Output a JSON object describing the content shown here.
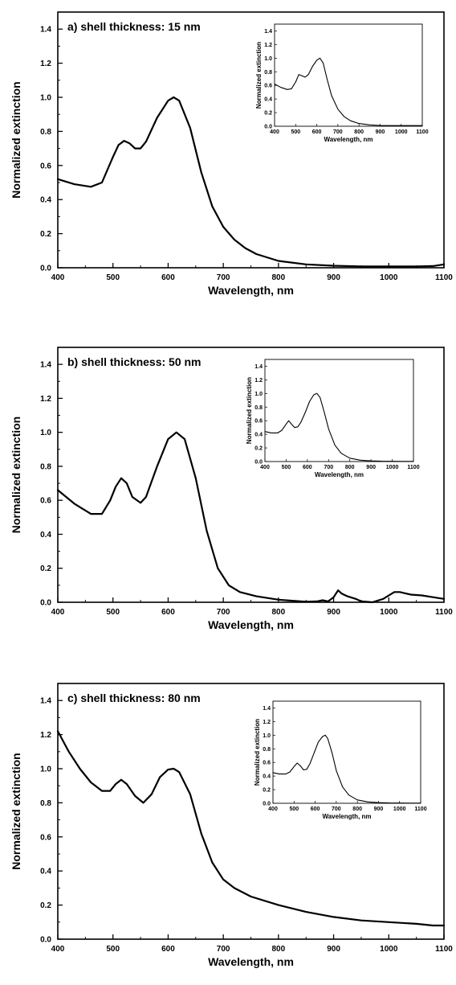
{
  "chart_data": [
    {
      "type": "line",
      "title": "a) shell thickness: 15 nm",
      "xlabel": "Wavelength, nm",
      "ylabel": "Normalized extinction",
      "xlim": [
        400,
        1100
      ],
      "ylim": [
        0,
        1.5
      ],
      "xticks": [
        400,
        500,
        600,
        700,
        800,
        900,
        1000,
        1100
      ],
      "yticks": [
        0.0,
        0.2,
        0.4,
        0.6,
        0.8,
        1.0,
        1.2,
        1.4
      ],
      "series": [
        {
          "x": [
            400,
            430,
            460,
            480,
            500,
            510,
            520,
            530,
            540,
            550,
            560,
            580,
            600,
            610,
            620,
            640,
            660,
            680,
            700,
            720,
            740,
            760,
            800,
            850,
            900,
            950,
            1000,
            1050,
            1080,
            1100
          ],
          "y": [
            0.52,
            0.49,
            0.475,
            0.5,
            0.65,
            0.72,
            0.745,
            0.73,
            0.7,
            0.7,
            0.74,
            0.88,
            0.98,
            1.0,
            0.98,
            0.82,
            0.56,
            0.36,
            0.24,
            0.165,
            0.115,
            0.08,
            0.04,
            0.02,
            0.012,
            0.008,
            0.008,
            0.008,
            0.01,
            0.02
          ]
        }
      ],
      "inset": {
        "type": "line",
        "xlabel": "Wavelength, nm",
        "ylabel": "Normalized extinction",
        "xlim": [
          400,
          1100
        ],
        "ylim": [
          0,
          1.5
        ],
        "xticks": [
          400,
          500,
          600,
          700,
          800,
          900,
          1000,
          1100
        ],
        "yticks": [
          0.0,
          0.2,
          0.4,
          0.6,
          0.8,
          1.0,
          1.2,
          1.4
        ],
        "series": [
          {
            "x": [
              400,
              430,
              460,
              480,
              500,
              515,
              530,
              545,
              560,
              580,
              600,
              615,
              630,
              650,
              670,
              700,
              730,
              760,
              800,
              850,
              900,
              950,
              1000,
              1050,
              1100
            ],
            "y": [
              0.62,
              0.57,
              0.54,
              0.55,
              0.65,
              0.76,
              0.74,
              0.72,
              0.76,
              0.88,
              0.97,
              1.0,
              0.93,
              0.68,
              0.45,
              0.25,
              0.14,
              0.08,
              0.04,
              0.02,
              0.012,
              0.01,
              0.01,
              0.01,
              0.01
            ]
          }
        ]
      }
    },
    {
      "type": "line",
      "title": "b) shell thickness: 50 nm",
      "xlabel": "Wavelength, nm",
      "ylabel": "Normalized extinction",
      "xlim": [
        400,
        1100
      ],
      "ylim": [
        0,
        1.5
      ],
      "xticks": [
        400,
        500,
        600,
        700,
        800,
        900,
        1000,
        1100
      ],
      "yticks": [
        0.0,
        0.2,
        0.4,
        0.6,
        0.8,
        1.0,
        1.2,
        1.4
      ],
      "series": [
        {
          "x": [
            400,
            430,
            460,
            480,
            495,
            505,
            515,
            525,
            535,
            550,
            560,
            580,
            600,
            615,
            630,
            650,
            670,
            690,
            710,
            730,
            760,
            800,
            850,
            870,
            880,
            890,
            900,
            908,
            915,
            925,
            940,
            950,
            970,
            990,
            1000,
            1010,
            1020,
            1040,
            1060,
            1080,
            1100
          ],
          "y": [
            0.66,
            0.58,
            0.52,
            0.52,
            0.6,
            0.68,
            0.73,
            0.7,
            0.62,
            0.585,
            0.62,
            0.8,
            0.96,
            1.0,
            0.96,
            0.73,
            0.42,
            0.2,
            0.1,
            0.06,
            0.035,
            0.015,
            0.003,
            0.005,
            0.012,
            0.005,
            0.03,
            0.07,
            0.05,
            0.035,
            0.02,
            0.005,
            0.0,
            0.02,
            0.04,
            0.06,
            0.06,
            0.045,
            0.04,
            0.03,
            0.02
          ]
        }
      ],
      "inset": {
        "type": "line",
        "xlabel": "Wavelength, nm",
        "ylabel": "Normalized extinction",
        "xlim": [
          400,
          1100
        ],
        "ylim": [
          0,
          1.5
        ],
        "xticks": [
          400,
          500,
          600,
          700,
          800,
          900,
          1000,
          1100
        ],
        "yticks": [
          0.0,
          0.2,
          0.4,
          0.6,
          0.8,
          1.0,
          1.2,
          1.4
        ],
        "series": [
          {
            "x": [
              400,
              430,
              460,
              480,
              500,
              512,
              525,
              540,
              555,
              570,
              590,
              610,
              630,
              645,
              660,
              680,
              700,
              730,
              760,
              800,
              850,
              900,
              950,
              1000,
              1050,
              1100
            ],
            "y": [
              0.44,
              0.42,
              0.42,
              0.46,
              0.55,
              0.6,
              0.55,
              0.5,
              0.51,
              0.58,
              0.72,
              0.88,
              0.98,
              1.0,
              0.94,
              0.72,
              0.48,
              0.24,
              0.12,
              0.05,
              0.02,
              0.01,
              0.005,
              0.003,
              0.002,
              0.002
            ]
          }
        ]
      }
    },
    {
      "type": "line",
      "title": "c) shell thickness: 80 nm",
      "xlabel": "Wavelength, nm",
      "ylabel": "Normalized extinction",
      "xlim": [
        400,
        1100
      ],
      "ylim": [
        0,
        1.5
      ],
      "xticks": [
        400,
        500,
        600,
        700,
        800,
        900,
        1000,
        1100
      ],
      "yticks": [
        0.0,
        0.2,
        0.4,
        0.6,
        0.8,
        1.0,
        1.2,
        1.4
      ],
      "series": [
        {
          "x": [
            400,
            420,
            440,
            460,
            480,
            495,
            505,
            515,
            525,
            540,
            555,
            570,
            585,
            600,
            610,
            620,
            640,
            660,
            680,
            700,
            720,
            750,
            800,
            850,
            900,
            950,
            1000,
            1050,
            1080,
            1100
          ],
          "y": [
            1.22,
            1.1,
            1.0,
            0.92,
            0.87,
            0.87,
            0.91,
            0.935,
            0.91,
            0.84,
            0.8,
            0.85,
            0.95,
            0.995,
            1.0,
            0.98,
            0.85,
            0.62,
            0.45,
            0.35,
            0.3,
            0.25,
            0.2,
            0.16,
            0.13,
            0.11,
            0.1,
            0.09,
            0.08,
            0.08
          ]
        }
      ],
      "inset": {
        "type": "line",
        "xlabel": "Wavelength, nm",
        "ylabel": "Normalized extinction",
        "xlim": [
          400,
          1100
        ],
        "ylim": [
          0,
          1.5
        ],
        "xticks": [
          400,
          500,
          600,
          700,
          800,
          900,
          1000,
          1100
        ],
        "yticks": [
          0.0,
          0.2,
          0.4,
          0.6,
          0.8,
          1.0,
          1.2,
          1.4
        ],
        "series": [
          {
            "x": [
              400,
              430,
              460,
              480,
              500,
              515,
              530,
              545,
              560,
              575,
              595,
              615,
              635,
              648,
              660,
              680,
              700,
              730,
              760,
              800,
              850,
              900,
              950,
              1000,
              1050,
              1100
            ],
            "y": [
              0.45,
              0.43,
              0.43,
              0.46,
              0.54,
              0.59,
              0.55,
              0.49,
              0.5,
              0.58,
              0.74,
              0.9,
              0.98,
              1.0,
              0.95,
              0.74,
              0.48,
              0.24,
              0.12,
              0.05,
              0.02,
              0.01,
              0.005,
              0.003,
              0.002,
              0.002
            ]
          }
        ]
      }
    }
  ]
}
